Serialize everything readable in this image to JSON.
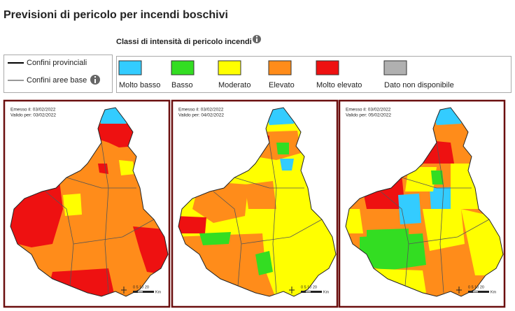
{
  "header": {
    "title": "Previsioni di pericolo per incendi boschivi"
  },
  "legend": {
    "title": "Classi di intensità di pericolo incendi",
    "boundaries": [
      "Confini provinciali",
      "Confini aree base"
    ],
    "classes": [
      {
        "label": "Molto basso",
        "color": "#33ccff"
      },
      {
        "label": "Basso",
        "color": "#33dd22"
      },
      {
        "label": "Moderato",
        "color": "#ffff00"
      },
      {
        "label": "Elevato",
        "color": "#ff8c1a"
      },
      {
        "label": "Molto elevato",
        "color": "#ee1111"
      },
      {
        "label": "Dato non disponibile",
        "color": "#b0b0b0"
      }
    ]
  },
  "maps": [
    {
      "issued": "Emesso il: 03/02/2022",
      "valid": "Valido per: 03/02/2022"
    },
    {
      "issued": "Emesso il: 03/02/2022",
      "valid": "Valido per: 04/02/2022"
    },
    {
      "issued": "Emesso il: 03/02/2022",
      "valid": "Valido per: 05/02/2022"
    }
  ],
  "scale": {
    "ticks": "0  5 10    20",
    "unit": "Km"
  }
}
